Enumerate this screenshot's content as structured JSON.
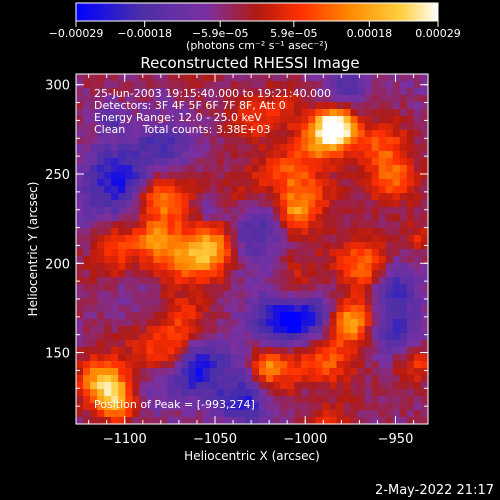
{
  "chart_data": {
    "type": "heatmap",
    "title": "Reconstructed RHESSI Image",
    "xlabel": "Heliocentric X (arcsec)",
    "ylabel": "Heliocentric Y (arcsec)",
    "xlim": [
      -1127,
      -932
    ],
    "ylim": [
      110,
      306
    ],
    "x_ticks": [
      -1100,
      -1050,
      -1000,
      -950
    ],
    "x_tick_labels": [
      "−1100",
      "−1050",
      "−1000",
      "−950"
    ],
    "y_ticks": [
      150,
      200,
      250,
      300
    ],
    "y_tick_labels": [
      "150",
      "200",
      "250",
      "300"
    ],
    "colorbar": {
      "range": [
        -0.00029,
        0.00029
      ],
      "tick_values": [
        -0.00029,
        -0.00018,
        -5.9e-05,
        5.9e-05,
        0.00018,
        0.00029
      ],
      "tick_labels": [
        "−0.00029",
        "−0.00018",
        "−5.9e−05",
        "5.9e−05",
        "0.00018",
        "0.00029"
      ],
      "unit_label": "(photons cm⁻² s⁻¹ asec⁻²)",
      "colors": [
        "#0000ff",
        "#4b2fa8",
        "#7a30a0",
        "#b11a12",
        "#ff4500",
        "#ff9a00",
        "#ffd040",
        "#ffffff"
      ]
    },
    "annotations": [
      "25-Jun-2003 19:15:40.000 to 19:21:40.000",
      "Detectors: 3F 4F 5F 6F 7F 8F, Att 0",
      "Energy Range: 12.0 - 25.0 keV",
      "Clean     Total counts: 3.38E+03",
      "Position of Peak = [-993,274]"
    ],
    "peak": {
      "x": -993,
      "y": 274
    },
    "footer": "2-May-2022 21:17",
    "grid": false
  }
}
